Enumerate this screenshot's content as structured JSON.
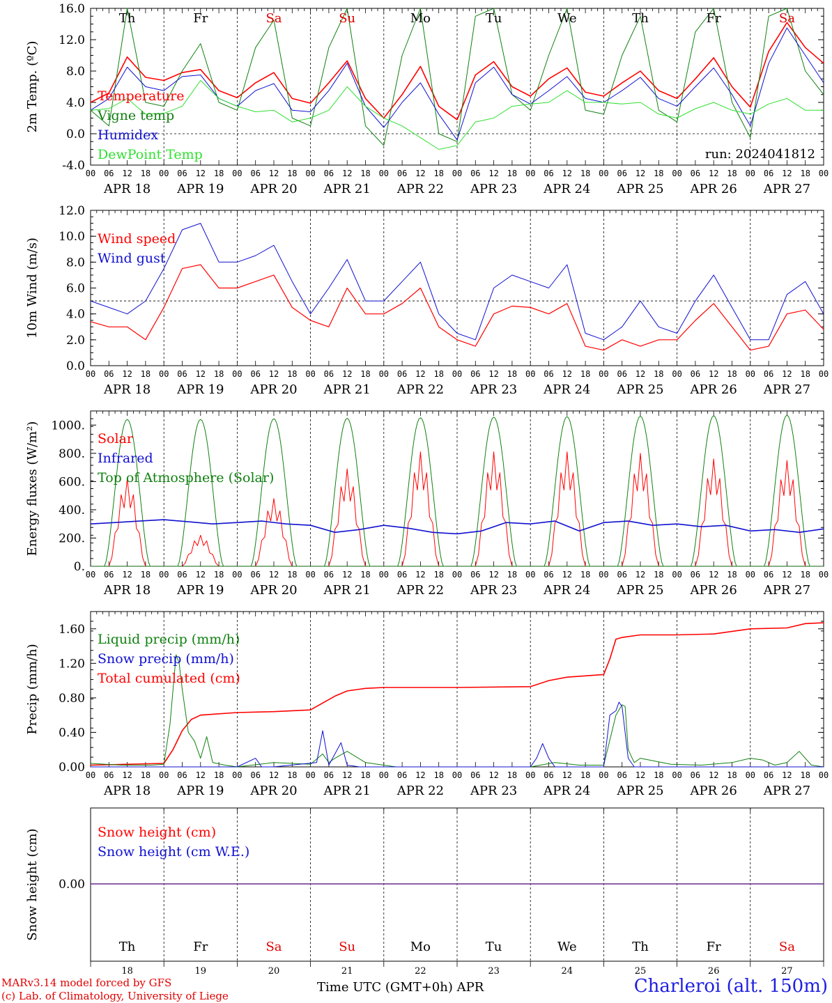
{
  "chart_data": [
    {
      "type": "line",
      "ylabel": "2m Temp. (ºC)",
      "ylim": [
        -4,
        16
      ],
      "yticks": [
        "16.0",
        "12.0",
        "8.0",
        "4.0",
        "0.0",
        "-4.0"
      ],
      "dashed_ref": 0,
      "annotation": "run: 2024041812",
      "legend": [
        {
          "name": "Temperature",
          "color": "#ff0000"
        },
        {
          "name": "Vigne temp",
          "color": "#108010"
        },
        {
          "name": "Humidex",
          "color": "#1010d0"
        },
        {
          "name": "DewPoint Temp",
          "color": "#30e030"
        }
      ],
      "x_hours": [
        0,
        6,
        12,
        18,
        24,
        30,
        36,
        42,
        48,
        54,
        60,
        66,
        72,
        78,
        84,
        90,
        96,
        102,
        108,
        114,
        120,
        126,
        132,
        138,
        144,
        150,
        156,
        162,
        168,
        174,
        180,
        186,
        192,
        198,
        204,
        210,
        216,
        222,
        228,
        234,
        240
      ],
      "series": [
        {
          "name": "Temperature",
          "color": "#ff0000",
          "width": 1.6,
          "values": [
            4.0,
            5.2,
            9.8,
            7.2,
            6.8,
            7.8,
            8.2,
            5.5,
            4.6,
            6.5,
            7.8,
            4.5,
            3.9,
            6.5,
            9.3,
            4.5,
            2.0,
            5.0,
            8.6,
            3.5,
            1.8,
            7.5,
            9.2,
            6.0,
            4.8,
            7.0,
            8.4,
            5.3,
            4.8,
            6.5,
            8.0,
            5.5,
            4.5,
            7.0,
            9.7,
            6.0,
            3.4,
            10.5,
            14.2,
            11.0,
            9.0
          ]
        },
        {
          "name": "Vigne temp",
          "color": "#108010",
          "width": 1.0,
          "values": [
            3.0,
            1.0,
            16.0,
            4.0,
            3.5,
            8.0,
            11.5,
            4.0,
            3.0,
            11.0,
            14.5,
            2.0,
            1.0,
            11.0,
            16.0,
            1.0,
            -1.5,
            10.0,
            16.0,
            0.0,
            -1.0,
            15.0,
            16.0,
            5.0,
            3.0,
            10.0,
            16.0,
            3.0,
            2.5,
            10.0,
            15.0,
            3.0,
            1.5,
            13.0,
            16.0,
            4.0,
            -0.5,
            15.0,
            16.0,
            8.0,
            5.0
          ]
        },
        {
          "name": "Humidex",
          "color": "#1010d0",
          "width": 1.0,
          "values": [
            3.0,
            4.5,
            8.5,
            6.0,
            5.5,
            7.3,
            7.5,
            4.5,
            3.5,
            5.5,
            6.4,
            3.0,
            2.8,
            5.5,
            9.0,
            3.5,
            0.8,
            4.0,
            6.5,
            2.5,
            -0.8,
            6.5,
            8.5,
            5.0,
            3.8,
            5.5,
            7.3,
            4.5,
            4.0,
            5.5,
            7.2,
            4.5,
            3.5,
            6.0,
            8.4,
            5.0,
            1.0,
            9.0,
            13.5,
            10.0,
            6.5
          ]
        },
        {
          "name": "DewPoint Temp",
          "color": "#30e030",
          "width": 1.0,
          "values": [
            3.0,
            3.2,
            4.5,
            2.5,
            2.6,
            3.5,
            6.8,
            4.5,
            3.5,
            2.8,
            3.0,
            1.5,
            2.0,
            3.0,
            6.0,
            3.5,
            2.0,
            1.0,
            -0.5,
            -2.0,
            -1.5,
            1.5,
            2.0,
            3.5,
            3.8,
            4.0,
            5.5,
            4.0,
            4.0,
            3.8,
            4.0,
            2.5,
            2.0,
            3.2,
            4.0,
            3.0,
            2.5,
            3.8,
            4.5,
            3.0,
            3.0
          ]
        }
      ]
    },
    {
      "type": "line",
      "ylabel": "10m Wind (m/s)",
      "ylim": [
        0,
        12
      ],
      "yticks": [
        "12.0",
        "10.0",
        "8.0",
        "6.0",
        "4.0",
        "2.0",
        "0.0"
      ],
      "dashed_ref": 5,
      "legend": [
        {
          "name": "Wind speed",
          "color": "#ff0000"
        },
        {
          "name": "Wind gust",
          "color": "#1010d0"
        }
      ],
      "x_hours": [
        0,
        6,
        12,
        18,
        24,
        30,
        36,
        42,
        48,
        54,
        60,
        66,
        72,
        78,
        84,
        90,
        96,
        102,
        108,
        114,
        120,
        126,
        132,
        138,
        144,
        150,
        156,
        162,
        168,
        174,
        180,
        186,
        192,
        198,
        204,
        210,
        216,
        222,
        228,
        234,
        240
      ],
      "series": [
        {
          "name": "Wind speed",
          "color": "#ff0000",
          "width": 1.2,
          "values": [
            3.4,
            3.0,
            3.0,
            2.0,
            4.5,
            7.5,
            7.8,
            6.0,
            6.0,
            6.5,
            7.0,
            4.5,
            3.5,
            3.0,
            6.0,
            4.0,
            4.0,
            4.8,
            6.0,
            3.0,
            2.0,
            1.5,
            4.0,
            4.6,
            4.5,
            4.0,
            4.8,
            1.5,
            1.2,
            2.0,
            1.5,
            2.0,
            2.0,
            3.5,
            4.8,
            3.0,
            1.2,
            1.5,
            4.0,
            4.3,
            2.8
          ]
        },
        {
          "name": "Wind gust",
          "color": "#1010d0",
          "width": 1.0,
          "values": [
            5.0,
            4.5,
            4.0,
            5.0,
            7.5,
            10.5,
            11.0,
            8.0,
            8.0,
            8.5,
            9.3,
            6.5,
            4.0,
            6.0,
            8.2,
            5.0,
            5.0,
            6.5,
            8.0,
            4.0,
            2.5,
            2.0,
            6.0,
            7.0,
            6.5,
            6.0,
            7.8,
            2.5,
            2.0,
            3.0,
            5.0,
            3.0,
            2.5,
            5.0,
            7.0,
            4.5,
            2.0,
            2.0,
            5.5,
            6.5,
            4.0
          ]
        }
      ]
    },
    {
      "type": "line",
      "ylabel": "Energy fluxes (W/m²)",
      "ylim": [
        0,
        1100
      ],
      "yticks": [
        "1000.",
        "800.",
        "600.",
        "400.",
        "200.",
        "0."
      ],
      "legend": [
        {
          "name": "Solar",
          "color": "#ff0000"
        },
        {
          "name": "Infrared",
          "color": "#1010d0"
        },
        {
          "name": "Top of Atmosphere (Solar)",
          "color": "#108010"
        }
      ],
      "toa_peaks": [
        1040,
        1040,
        1045,
        1048,
        1052,
        1056,
        1060,
        1063,
        1066,
        1070
      ],
      "solar_peaks": [
        620,
        220,
        480,
        690,
        810,
        810,
        810,
        800,
        760,
        750
      ],
      "infrared_values": [
        300,
        310,
        320,
        330,
        315,
        300,
        310,
        320,
        300,
        290,
        240,
        260,
        290,
        270,
        240,
        230,
        250,
        310,
        300,
        320,
        250,
        310,
        320,
        290,
        300,
        280,
        290,
        250,
        260,
        240,
        265
      ]
    },
    {
      "type": "line",
      "ylabel": "Precip (mm/h)",
      "ylim": [
        0,
        1.8
      ],
      "yticks": [
        "1.60",
        "1.20",
        "0.80",
        "0.40",
        "0.00"
      ],
      "legend": [
        {
          "name": "Liquid precip (mm/h)",
          "color": "#108010"
        },
        {
          "name": "Snow precip (mm/h)",
          "color": "#1010d0"
        },
        {
          "name": "Total cumulated (cm)",
          "color": "#ff0000"
        }
      ],
      "series": [
        {
          "name": "Total cumulated (cm)",
          "color": "#ff0000",
          "width": 1.6,
          "x": [
            0,
            24,
            27,
            30,
            33,
            36,
            40,
            48,
            60,
            72,
            76,
            80,
            84,
            90,
            96,
            108,
            120,
            144,
            150,
            156,
            168,
            170,
            172,
            174,
            180,
            192,
            204,
            216,
            228,
            234,
            240
          ],
          "values": [
            0.02,
            0.04,
            0.2,
            0.42,
            0.55,
            0.6,
            0.61,
            0.63,
            0.64,
            0.66,
            0.74,
            0.82,
            0.88,
            0.91,
            0.92,
            0.92,
            0.92,
            0.93,
            1.0,
            1.04,
            1.07,
            1.25,
            1.48,
            1.5,
            1.53,
            1.53,
            1.54,
            1.6,
            1.61,
            1.66,
            1.67
          ]
        },
        {
          "name": "Liquid precip (mm/h)",
          "color": "#108010",
          "width": 1.0,
          "x": [
            0,
            10,
            20,
            24,
            26,
            28,
            29,
            30,
            32,
            34,
            36,
            38,
            40,
            44,
            48,
            60,
            72,
            76,
            78,
            80,
            84,
            90,
            100,
            120,
            144,
            152,
            160,
            168,
            172,
            174,
            175,
            176,
            178,
            180,
            190,
            200,
            210,
            216,
            220,
            224,
            228,
            232,
            236,
            240
          ],
          "values": [
            0.04,
            0.02,
            0.02,
            0.03,
            0.5,
            1.3,
            1.2,
            0.9,
            0.4,
            0.3,
            0.1,
            0.35,
            0.05,
            0.02,
            0.0,
            0.05,
            0.03,
            0.15,
            0.05,
            0.1,
            0.18,
            0.05,
            0.0,
            0.0,
            0.0,
            0.05,
            0.02,
            0.02,
            0.6,
            0.72,
            0.7,
            0.2,
            0.05,
            0.1,
            0.03,
            0.02,
            0.05,
            0.1,
            0.08,
            0.02,
            0.05,
            0.18,
            0.02,
            0.0
          ]
        },
        {
          "name": "Snow precip (mm/h)",
          "color": "#1010d0",
          "width": 1.0,
          "x": [
            0,
            48,
            54,
            56,
            60,
            74,
            76,
            78,
            82,
            84,
            88,
            96,
            144,
            146,
            148,
            150,
            152,
            160,
            168,
            170,
            172,
            173,
            174,
            176,
            178,
            180,
            240
          ],
          "values": [
            0.0,
            0.0,
            0.1,
            0.0,
            0.0,
            0.05,
            0.42,
            0.02,
            0.28,
            0.02,
            0.0,
            0.0,
            0.0,
            0.1,
            0.27,
            0.1,
            0.0,
            0.0,
            0.0,
            0.6,
            0.65,
            0.75,
            0.7,
            0.1,
            0.0,
            0.0,
            0.0
          ]
        }
      ]
    },
    {
      "type": "line",
      "ylabel": "Snow height (cm)",
      "yticks": [
        "0.00"
      ],
      "legend": [
        {
          "name": "Snow height (cm)",
          "color": "#ff0000"
        },
        {
          "name": "Snow height (cm W.E.)",
          "color": "#1010d0"
        }
      ],
      "value": 0.0
    }
  ],
  "days": [
    {
      "name": "Th",
      "date": "APR 18",
      "num": "18",
      "weekend": false
    },
    {
      "name": "Fr",
      "date": "APR 19",
      "num": "19",
      "weekend": false
    },
    {
      "name": "Sa",
      "date": "APR 20",
      "num": "20",
      "weekend": true
    },
    {
      "name": "Su",
      "date": "APR 21",
      "num": "21",
      "weekend": true
    },
    {
      "name": "Mo",
      "date": "APR 22",
      "num": "22",
      "weekend": false
    },
    {
      "name": "Tu",
      "date": "APR 23",
      "num": "23",
      "weekend": false
    },
    {
      "name": "We",
      "date": "APR 24",
      "num": "24",
      "weekend": false
    },
    {
      "name": "Th",
      "date": "APR 25",
      "num": "25",
      "weekend": false
    },
    {
      "name": "Fr",
      "date": "APR 26",
      "num": "26",
      "weekend": false
    },
    {
      "name": "Sa",
      "date": "APR 27",
      "num": "27",
      "weekend": true
    }
  ],
  "hour_labels": [
    "00",
    "06",
    "12",
    "18"
  ],
  "colors": {
    "weekday": "#000000",
    "weekend": "#e00000",
    "axis": "#000000"
  },
  "footer": {
    "model_line": "MARv3.14 model forced by GFS",
    "credit_line": "(c) Lab. of Climatology, University of Liege",
    "axis_title": "Time UTC (GMT+0h) APR",
    "station": "Charleroi (alt. 150m)"
  }
}
